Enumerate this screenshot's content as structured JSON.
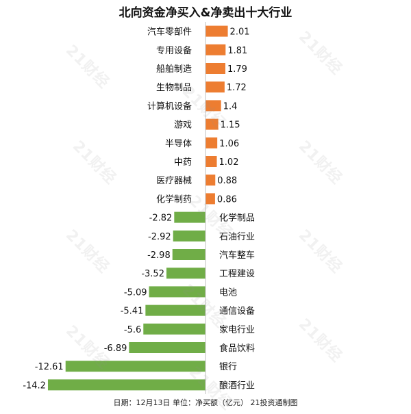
{
  "chart_data": {
    "type": "bar",
    "orientation": "horizontal-diverging",
    "title": "北向资金净买入&净卖出十大行业",
    "positive": {
      "categories": [
        "汽车零部件",
        "专用设备",
        "船舶制造",
        "生物制品",
        "计算机设备",
        "游戏",
        "半导体",
        "中药",
        "医疗器械",
        "化学制药"
      ],
      "values": [
        2.01,
        1.81,
        1.79,
        1.72,
        1.4,
        1.15,
        1.06,
        1.02,
        0.88,
        0.86
      ],
      "color": "#ED7D31"
    },
    "negative": {
      "categories": [
        "化学制品",
        "石油行业",
        "汽车整车",
        "工程建设",
        "电池",
        "通信设备",
        "家电行业",
        "食品饮料",
        "银行",
        "酿酒行业"
      ],
      "values": [
        -2.82,
        -2.92,
        -2.98,
        -3.52,
        -5.09,
        -5.41,
        -5.6,
        -6.89,
        -12.61,
        -14.2
      ],
      "color": "#70AD47"
    },
    "value_labels": {
      "positive": [
        "2.01",
        "1.81",
        "1.79",
        "1.72",
        "1.4",
        "1.15",
        "1.06",
        "1.02",
        "0.88",
        "0.86"
      ],
      "negative": [
        "-2.82",
        "-2.92",
        "-2.98",
        "-3.52",
        "-5.09",
        "-5.41",
        "-5.6",
        "-6.89",
        "-12.61",
        "-14.2"
      ]
    },
    "axis_color": "#BFBFBF",
    "grid": false,
    "legend": "none"
  },
  "footer": "日期：12月13日 单位：净买额（亿元） 21投资通制图",
  "watermark": "21财经"
}
